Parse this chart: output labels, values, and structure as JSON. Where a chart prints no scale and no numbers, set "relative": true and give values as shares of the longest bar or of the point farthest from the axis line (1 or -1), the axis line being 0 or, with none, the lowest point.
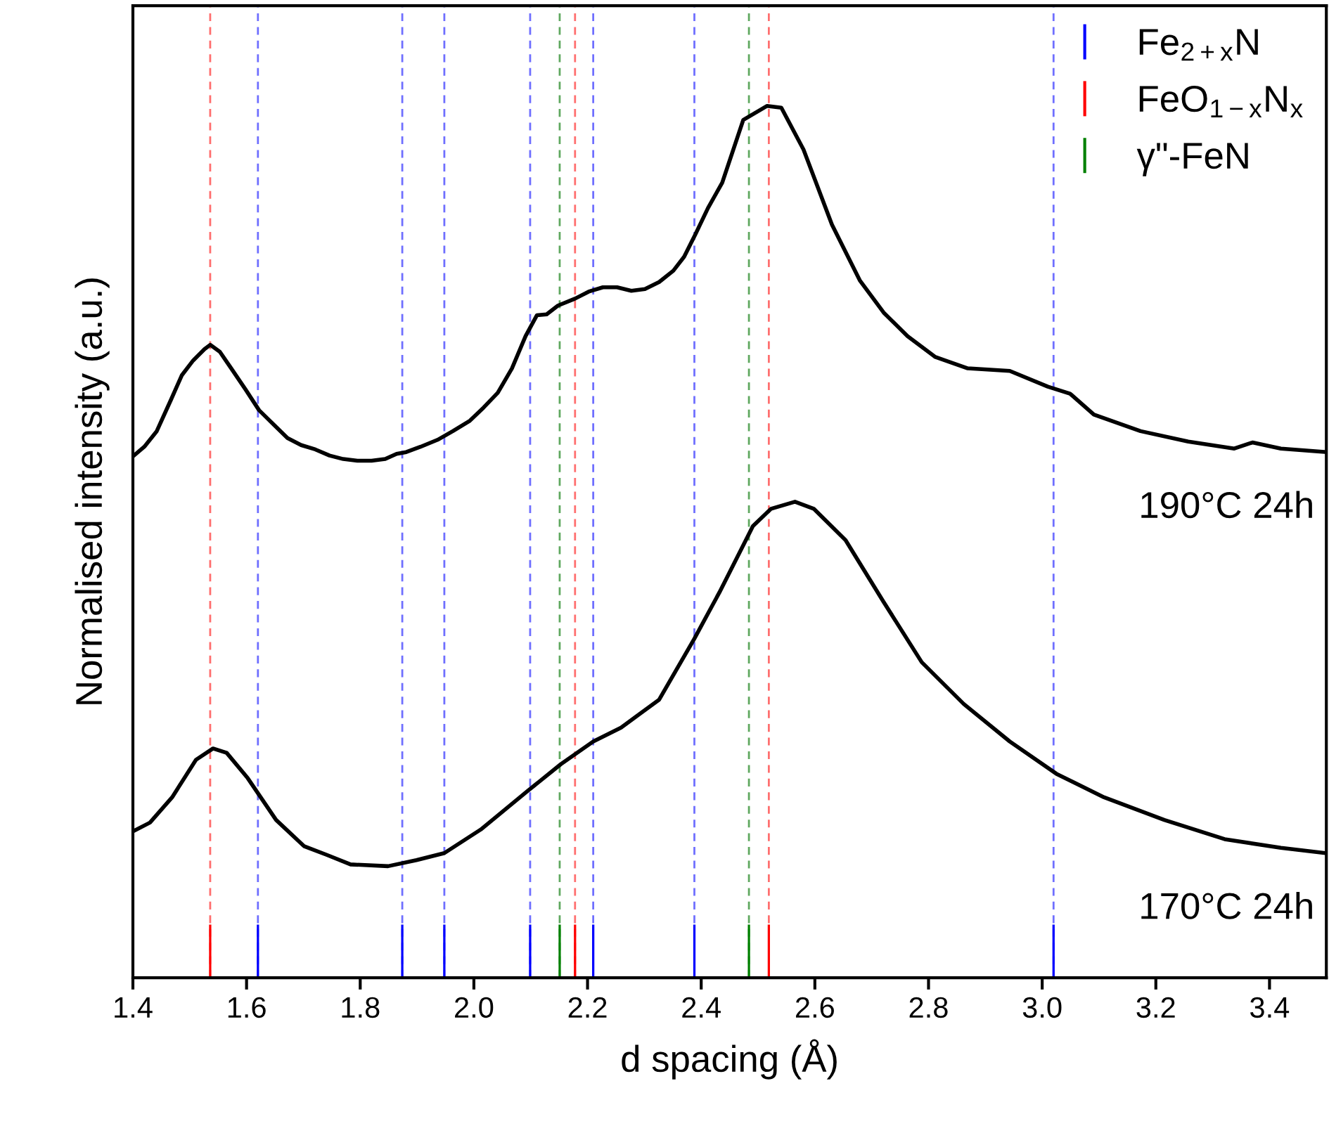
{
  "chart_data": {
    "type": "line",
    "relative": true,
    "xlabel": "d spacing (Å)",
    "ylabel": "Normalised intensity (a.u.)",
    "xlim": [
      1.4,
      3.5
    ],
    "xticks": [
      1.4,
      1.6,
      1.8,
      {
        "value": 2,
        "label": "2.0"
      },
      2.2,
      2.4,
      2.6,
      2.8,
      {
        "value": 3,
        "label": "3.0"
      },
      3.2,
      3.4
    ],
    "tick_labels": "x",
    "legend": "top right",
    "series": [
      {
        "color": "#000000",
        "x": [
          1.4,
          1.42,
          1.442,
          1.467,
          1.486,
          1.506,
          1.526,
          1.536,
          1.553,
          1.573,
          1.598,
          1.622,
          1.647,
          1.672,
          1.696,
          1.721,
          1.746,
          1.77,
          1.795,
          1.82,
          1.844,
          1.864,
          1.881,
          1.906,
          1.936,
          1.963,
          1.993,
          2.017,
          2.042,
          2.067,
          2.091,
          2.111,
          2.128,
          2.148,
          2.178,
          2.202,
          2.227,
          2.252,
          2.277,
          2.301,
          2.326,
          2.351,
          2.37,
          2.39,
          2.412,
          2.437,
          2.474,
          2.516,
          2.541,
          2.58,
          2.63,
          2.679,
          2.721,
          2.763,
          2.812,
          2.869,
          2.943,
          3.01,
          3.049,
          3.091,
          3.173,
          3.257,
          3.338,
          3.37,
          3.42,
          3.499
        ],
        "values": [
          0.598,
          0.609,
          0.627,
          0.663,
          0.691,
          0.708,
          0.721,
          0.726,
          0.718,
          0.699,
          0.675,
          0.651,
          0.635,
          0.619,
          0.611,
          0.606,
          0.599,
          0.595,
          0.593,
          0.593,
          0.595,
          0.601,
          0.603,
          0.609,
          0.617,
          0.627,
          0.639,
          0.654,
          0.671,
          0.699,
          0.736,
          0.76,
          0.761,
          0.771,
          0.779,
          0.787,
          0.792,
          0.792,
          0.788,
          0.79,
          0.798,
          0.811,
          0.827,
          0.853,
          0.883,
          0.912,
          0.984,
          1.0,
          0.998,
          0.95,
          0.864,
          0.8,
          0.763,
          0.736,
          0.712,
          0.699,
          0.696,
          0.678,
          0.67,
          0.646,
          0.627,
          0.615,
          0.607,
          0.614,
          0.607,
          0.603
        ]
      },
      {
        "color": "#000000",
        "x": [
          1.4,
          1.43,
          1.469,
          1.511,
          1.541,
          1.565,
          1.602,
          1.652,
          1.701,
          1.741,
          1.783,
          1.849,
          1.899,
          1.948,
          2.012,
          2.096,
          2.153,
          2.21,
          2.259,
          2.326,
          2.388,
          2.432,
          2.491,
          2.523,
          2.565,
          2.598,
          2.654,
          2.721,
          2.788,
          2.862,
          2.943,
          3.025,
          3.109,
          3.215,
          3.321,
          3.42,
          3.499
        ],
        "values": [
          0.168,
          0.178,
          0.207,
          0.25,
          0.263,
          0.258,
          0.229,
          0.181,
          0.151,
          0.141,
          0.13,
          0.128,
          0.135,
          0.143,
          0.17,
          0.215,
          0.245,
          0.271,
          0.287,
          0.319,
          0.389,
          0.442,
          0.518,
          0.538,
          0.546,
          0.538,
          0.502,
          0.431,
          0.362,
          0.314,
          0.271,
          0.234,
          0.207,
          0.181,
          0.159,
          0.149,
          0.143
        ]
      },
      {
        "type": "bar",
        "name": "Fe$_{2+x}$N",
        "color": "#0000ff",
        "x": [
          1.62,
          1.874,
          1.948,
          2.099,
          2.21,
          2.388,
          3.02
        ],
        "values": [
          0.061,
          0.061,
          0.061,
          0.061,
          0.061,
          0.061,
          0.061
        ]
      },
      {
        "type": "bar",
        "name": "FeO$_{1−x}$N$_{x}$",
        "color": "#ff0000",
        "x": [
          1.536,
          2.178,
          2.519
        ],
        "values": [
          0.061,
          0.061,
          0.061
        ]
      },
      {
        "type": "bar",
        "name": "γ\"-FeN",
        "color": "#008000",
        "x": [
          2.151,
          2.484
        ],
        "values": [
          0.061,
          0.061
        ]
      }
    ],
    "ref_lines": [
      {
        "axis": "x",
        "value": 1.62,
        "color": "#6f6fff",
        "line_style": "dashed"
      },
      {
        "axis": "x",
        "value": 1.874,
        "color": "#6f6fff",
        "line_style": "dashed"
      },
      {
        "axis": "x",
        "value": 1.948,
        "color": "#6f6fff",
        "line_style": "dashed"
      },
      {
        "axis": "x",
        "value": 2.099,
        "color": "#6f6fff",
        "line_style": "dashed"
      },
      {
        "axis": "x",
        "value": 2.21,
        "color": "#6f6fff",
        "line_style": "dashed"
      },
      {
        "axis": "x",
        "value": 2.388,
        "color": "#6f6fff",
        "line_style": "dashed"
      },
      {
        "axis": "x",
        "value": 3.02,
        "color": "#6f6fff",
        "line_style": "dashed"
      },
      {
        "axis": "x",
        "value": 1.536,
        "color": "#ff6f6f",
        "line_style": "dashed"
      },
      {
        "axis": "x",
        "value": 2.178,
        "color": "#ff6f6f",
        "line_style": "dashed"
      },
      {
        "axis": "x",
        "value": 2.519,
        "color": "#ff6f6f",
        "line_style": "dashed"
      },
      {
        "axis": "x",
        "value": 2.151,
        "color": "#5fa85f",
        "line_style": "dashed"
      },
      {
        "axis": "x",
        "value": 2.484,
        "color": "#5fa85f",
        "line_style": "dashed"
      }
    ],
    "annotations": [
      "190°C 24h",
      "170°C 24h"
    ]
  }
}
